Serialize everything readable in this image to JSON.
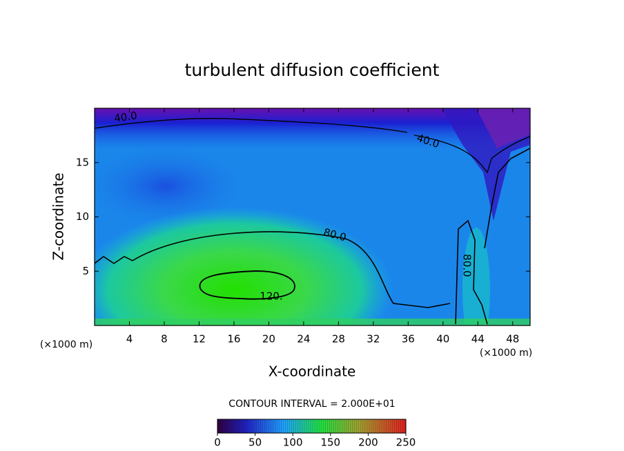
{
  "chart_data": {
    "type": "contour",
    "title": "turbulent diffusion coefficient",
    "xlabel": "X-coordinate",
    "ylabel": "Z-coordinate",
    "x_unit": "(×1000 m)",
    "xlim": [
      0,
      50
    ],
    "xticks": [
      4,
      8,
      12,
      16,
      20,
      24,
      28,
      32,
      36,
      40,
      44,
      48
    ],
    "ylim": [
      0,
      20
    ],
    "yticks": [
      5,
      10,
      15
    ],
    "contour_labels": [
      {
        "value": 40,
        "label": "40.0"
      },
      {
        "value": 40,
        "label": "40.0"
      },
      {
        "value": 80,
        "label": "80.0"
      },
      {
        "value": 80,
        "label": "80.0"
      },
      {
        "value": 120,
        "label": "120."
      }
    ],
    "contour_interval_label": "CONTOUR INTERVAL = 2.000E+01",
    "colorbar": {
      "lim": [
        0,
        250
      ],
      "ticks": [
        0,
        50,
        100,
        150,
        200,
        250
      ]
    }
  }
}
